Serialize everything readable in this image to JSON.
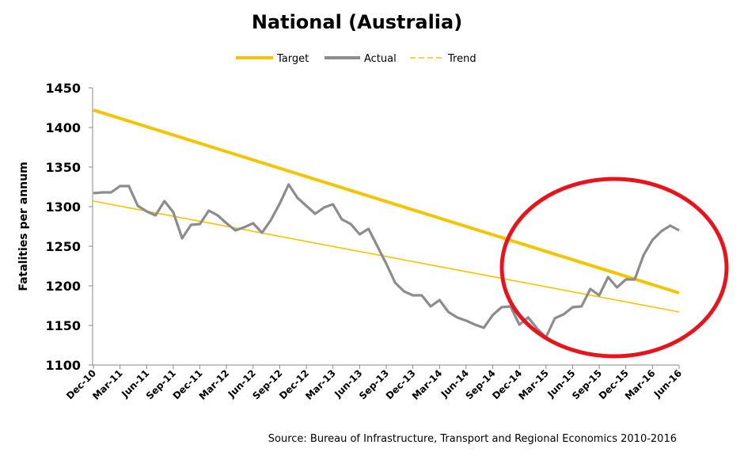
{
  "chart_data": {
    "type": "line",
    "title": "National (Australia)",
    "xlabel": "",
    "ylabel": "Fatalities per annum",
    "ylim": [
      1100,
      1450
    ],
    "yticks": [
      1100,
      1150,
      1200,
      1250,
      1300,
      1350,
      1400,
      1450
    ],
    "x_tick_labels": [
      "Dec-10",
      "Mar-11",
      "Jun-11",
      "Sep-11",
      "Dec-11",
      "Mar-12",
      "Jun-12",
      "Sep-12",
      "Dec-12",
      "Mar-13",
      "Jun-13",
      "Sep-13",
      "Dec-13",
      "Mar-14",
      "Jun-14",
      "Sep-14",
      "Dec-14",
      "Mar-15",
      "Jun-15",
      "Sep-15",
      "Dec-15",
      "Mar-16",
      "Jun-16"
    ],
    "x_points_per_tick": 3,
    "legend_position": "top-center",
    "grid": false,
    "series": [
      {
        "name": "Target",
        "color": "#f5c400",
        "style": "solid-thick",
        "start": 1422,
        "end": 1191
      },
      {
        "name": "Actual",
        "color": "#8c8c8c",
        "style": "solid",
        "values": [
          1317,
          1318,
          1318,
          1326,
          1326,
          1301,
          1294,
          1289,
          1307,
          1293,
          1260,
          1277,
          1278,
          1295,
          1289,
          1279,
          1270,
          1274,
          1279,
          1267,
          1283,
          1304,
          1328,
          1311,
          1301,
          1291,
          1299,
          1303,
          1284,
          1278,
          1265,
          1272,
          1250,
          1228,
          1204,
          1193,
          1188,
          1188,
          1174,
          1182,
          1167,
          1160,
          1156,
          1151,
          1147,
          1163,
          1173,
          1174,
          1151,
          1160,
          1146,
          1135,
          1159,
          1164,
          1173,
          1174,
          1196,
          1188,
          1211,
          1198,
          1208,
          1208,
          1239,
          1258,
          1269,
          1276,
          1270
        ]
      },
      {
        "name": "Trend",
        "color": "#f5c400",
        "style": "dashed-thin",
        "start": 1307,
        "end": 1167
      }
    ],
    "annotation": {
      "shape": "ellipse",
      "color": "#e8141b",
      "highlight_range": [
        "Dec-14",
        "Jun-16"
      ]
    },
    "source": "Source: Bureau of Infrastructure, Transport and Regional Economics 2010-2016"
  }
}
